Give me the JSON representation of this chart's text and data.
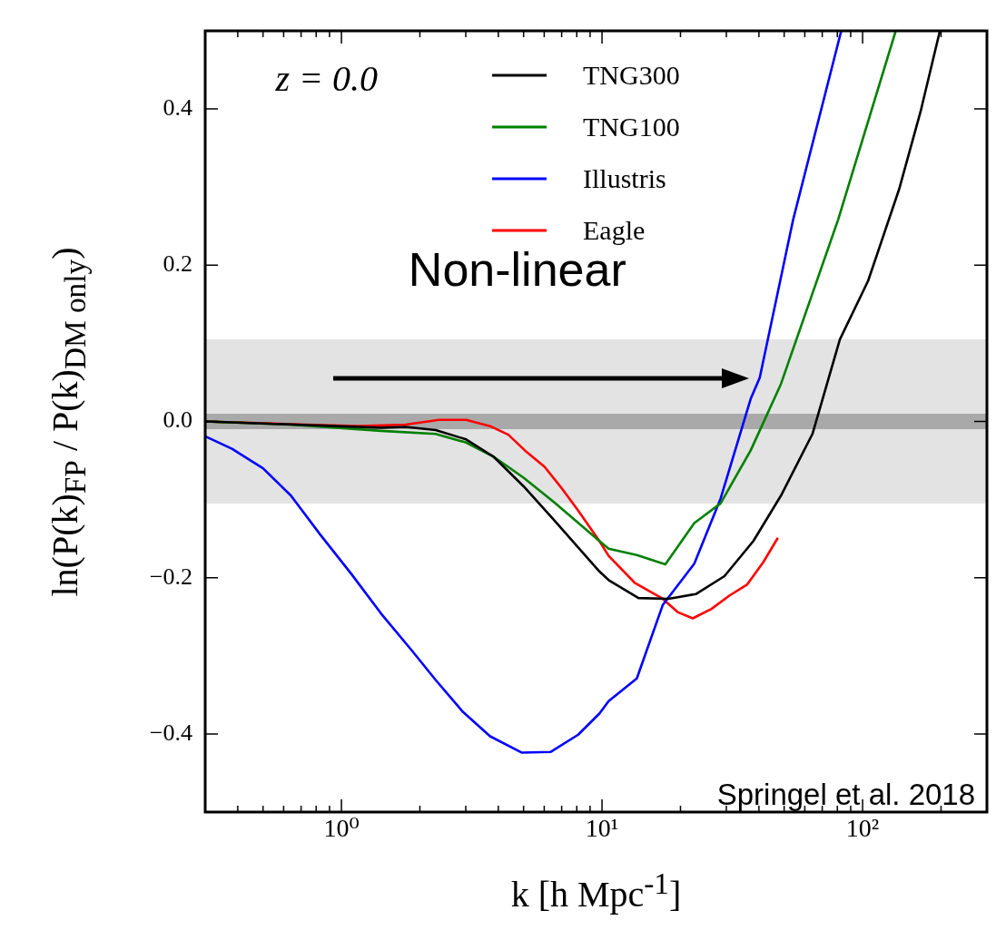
{
  "chart_data": {
    "type": "line",
    "xlabel": "k [h Mpc$^{-1}$]",
    "ylabel": "ln(P(k)$_{FP}$ / P(k)$_{DM only}$)",
    "log": "x",
    "xlim": [
      0.3,
      300
    ],
    "xticks": [
      {
        "value": 0.3,
        "label": null
      },
      {
        "value": 0.4,
        "label": null
      },
      {
        "value": 0.5,
        "label": null
      },
      {
        "value": 0.6,
        "label": null
      },
      {
        "value": 0.7,
        "label": null
      },
      {
        "value": 0.8,
        "label": null
      },
      {
        "value": 0.9,
        "label": null
      },
      {
        "value": 1,
        "label": "10⁰"
      },
      {
        "value": 2,
        "label": null
      },
      {
        "value": 3,
        "label": null
      },
      {
        "value": 4,
        "label": null
      },
      {
        "value": 5,
        "label": null
      },
      {
        "value": 6,
        "label": null
      },
      {
        "value": 7,
        "label": null
      },
      {
        "value": 8,
        "label": null
      },
      {
        "value": 9,
        "label": null
      },
      {
        "value": 10,
        "label": "10¹"
      },
      {
        "value": 20,
        "label": null
      },
      {
        "value": 30,
        "label": null
      },
      {
        "value": 40,
        "label": null
      },
      {
        "value": 50,
        "label": null
      },
      {
        "value": 60,
        "label": null
      },
      {
        "value": 70,
        "label": null
      },
      {
        "value": 80,
        "label": null
      },
      {
        "value": 90,
        "label": null
      },
      {
        "value": 100,
        "label": "10²"
      },
      {
        "value": 200,
        "label": null
      },
      {
        "value": 300,
        "label": null
      }
    ],
    "ylim": [
      -0.5,
      0.5
    ],
    "yticks": [
      {
        "value": -0.4,
        "label": "−0.4"
      },
      {
        "value": -0.2,
        "label": "−0.2"
      },
      {
        "value": 0,
        "label": "0.0"
      },
      0.2,
      0.4
    ],
    "grid": false,
    "legend": "top right",
    "bands": [
      {
        "axis": "y",
        "from": -0.105,
        "to": 0.105,
        "color": "#e3e3e3"
      },
      {
        "axis": "y",
        "from": -0.01,
        "to": 0.01,
        "color": "#a9a9a9"
      }
    ],
    "annotations": [
      "z = 0.0",
      "Non-linear",
      "Springel et al. 2018"
    ],
    "series": [
      {
        "name": "TNG300",
        "color": "#000000",
        "x": [
          0.3,
          1.42,
          1.76,
          2.3,
          3.01,
          3.83,
          5.0,
          6.53,
          9.77,
          10.6,
          13.8,
          18.0,
          22.9,
          29.5,
          38.1,
          48.6,
          64.2,
          81.8,
          105,
          138,
          167,
          198
        ],
        "values": [
          0,
          -0.008,
          -0.007,
          -0.011,
          -0.023,
          -0.045,
          -0.083,
          -0.126,
          -0.192,
          -0.203,
          -0.226,
          -0.227,
          -0.221,
          -0.198,
          -0.153,
          -0.095,
          -0.016,
          0.105,
          0.18,
          0.297,
          0.397,
          0.5
        ]
      },
      {
        "name": "TNG100",
        "color": "#008000",
        "x": [
          0.3,
          0.64,
          1.42,
          2.3,
          3.01,
          3.83,
          5.0,
          6.53,
          9.77,
          10.6,
          13.6,
          17.5,
          22.6,
          28.5,
          37.2,
          48.6,
          80.5,
          134
        ],
        "values": [
          0,
          -0.004,
          -0.012,
          -0.016,
          -0.027,
          -0.045,
          -0.072,
          -0.103,
          -0.153,
          -0.163,
          -0.171,
          -0.183,
          -0.13,
          -0.105,
          -0.037,
          0.048,
          0.258,
          0.5
        ]
      },
      {
        "name": "Illustris",
        "color": "#0000ff",
        "x": [
          0.3,
          0.38,
          0.5,
          0.64,
          0.83,
          1.09,
          1.42,
          1.86,
          2.3,
          2.93,
          3.72,
          4.93,
          6.36,
          8.1,
          9.77,
          10.6,
          13.6,
          17.1,
          22.6,
          28.5,
          37.2,
          40.3,
          54.1,
          82.8
        ],
        "values": [
          -0.019,
          -0.035,
          -0.06,
          -0.095,
          -0.145,
          -0.195,
          -0.246,
          -0.293,
          -0.331,
          -0.372,
          -0.403,
          -0.424,
          -0.423,
          -0.401,
          -0.374,
          -0.358,
          -0.329,
          -0.235,
          -0.182,
          -0.099,
          0.029,
          0.056,
          0.258,
          0.5
        ]
      },
      {
        "name": "Eagle",
        "color": "#ff0000",
        "x": [
          0.3,
          0.73,
          1.15,
          1.76,
          2.37,
          3.01,
          3.72,
          4.37,
          5.13,
          6.02,
          7.06,
          8.1,
          9.77,
          10.6,
          13.4,
          17.1,
          19.5,
          22.3,
          26.3,
          30.8,
          36.0,
          41.6,
          47.3
        ],
        "values": [
          0,
          -0.004,
          -0.006,
          -0.004,
          0.002,
          0.002,
          -0.006,
          -0.017,
          -0.039,
          -0.058,
          -0.087,
          -0.114,
          -0.153,
          -0.172,
          -0.207,
          -0.227,
          -0.244,
          -0.252,
          -0.24,
          -0.223,
          -0.209,
          -0.18,
          -0.149
        ]
      }
    ]
  }
}
